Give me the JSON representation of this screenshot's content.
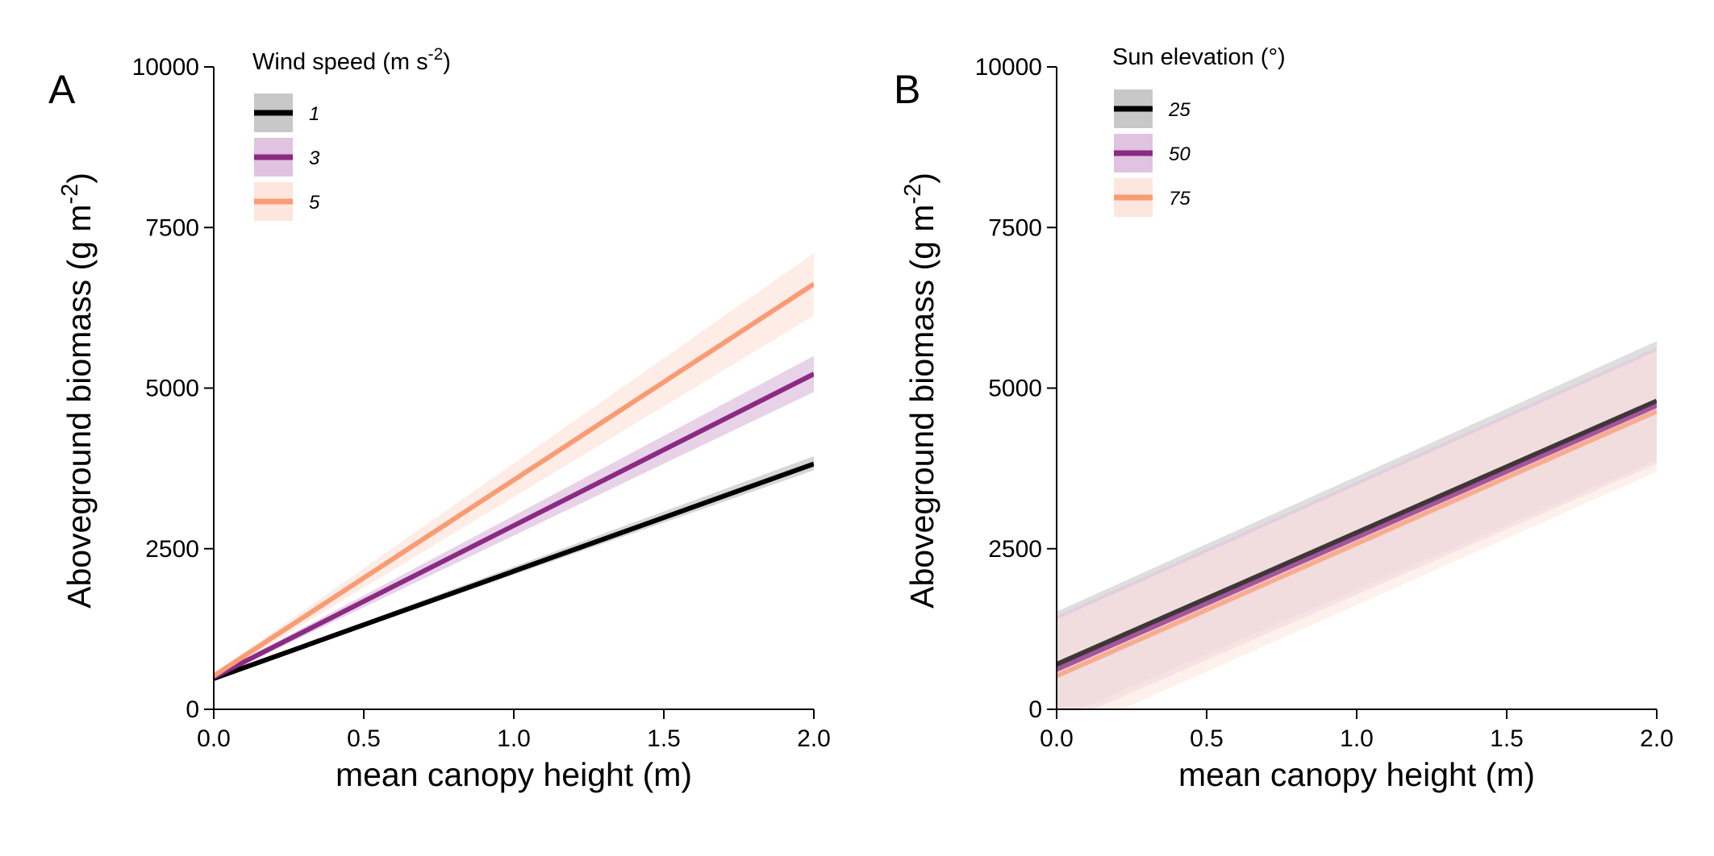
{
  "chart_data": [
    {
      "type": "line",
      "panel_label": "A",
      "xlabel": "mean canopy height (m)",
      "ylabel": "Aboveground biomass (g m-2)",
      "ylabel_parts": {
        "main": "Aboveground biomass (g m",
        "sup": "-2",
        "tail": ")"
      },
      "xlim": [
        0,
        2
      ],
      "ylim": [
        0,
        10000
      ],
      "xticks": [
        "0.0",
        "0.5",
        "1.0",
        "1.5",
        "2.0"
      ],
      "yticks": [
        "0",
        "2500",
        "5000",
        "7500",
        "10000"
      ],
      "legend_title": "Wind speed (m s-2)",
      "legend_title_parts": {
        "main": "Wind speed (m s",
        "sup": "-2",
        "tail": ")"
      },
      "legend_position": "top-left",
      "series": [
        {
          "name": "1",
          "color": "#000000",
          "band_color": "#c8c8c8",
          "x": [
            0,
            2
          ],
          "y": [
            480,
            3820
          ],
          "lower": [
            470,
            3720
          ],
          "upper": [
            500,
            3940
          ]
        },
        {
          "name": "3",
          "color": "#8b2a83",
          "band_color": "#dfc3e0",
          "x": [
            0,
            2
          ],
          "y": [
            500,
            5220
          ],
          "lower": [
            470,
            4940
          ],
          "upper": [
            530,
            5500
          ]
        },
        {
          "name": "5",
          "color": "#f99c74",
          "band_color": "#fde6dd",
          "x": [
            0,
            2
          ],
          "y": [
            520,
            6620
          ],
          "lower": [
            480,
            6130
          ],
          "upper": [
            560,
            7100
          ]
        }
      ]
    },
    {
      "type": "line",
      "panel_label": "B",
      "xlabel": "mean canopy height (m)",
      "ylabel": "Aboveground biomass (g m-2)",
      "ylabel_parts": {
        "main": "Aboveground biomass (g m",
        "sup": "-2",
        "tail": ")"
      },
      "xlim": [
        0,
        2
      ],
      "ylim": [
        0,
        10000
      ],
      "xticks": [
        "0.0",
        "0.5",
        "1.0",
        "1.5",
        "2.0"
      ],
      "yticks": [
        "0",
        "2500",
        "5000",
        "7500",
        "10000"
      ],
      "legend_title": "Sun elevation (°)",
      "legend_title_parts": {
        "main": "Sun elevation (°)",
        "sup": "",
        "tail": ""
      },
      "legend_position": "top-left",
      "series": [
        {
          "name": "25",
          "color": "#000000",
          "band_color": "#c8c8c8",
          "x": [
            0,
            2
          ],
          "y": [
            700,
            4800
          ],
          "lower": [
            -150,
            3880
          ],
          "upper": [
            1520,
            5730
          ]
        },
        {
          "name": "50",
          "color": "#8b2a83",
          "band_color": "#dfc3e0",
          "x": [
            0,
            2
          ],
          "y": [
            620,
            4730
          ],
          "lower": [
            -250,
            3820
          ],
          "upper": [
            1450,
            5630
          ]
        },
        {
          "name": "75",
          "color": "#f99c74",
          "band_color": "#fde6dd",
          "x": [
            0,
            2
          ],
          "y": [
            520,
            4640
          ],
          "lower": [
            -450,
            3700
          ],
          "upper": [
            1400,
            5580
          ]
        }
      ]
    }
  ]
}
